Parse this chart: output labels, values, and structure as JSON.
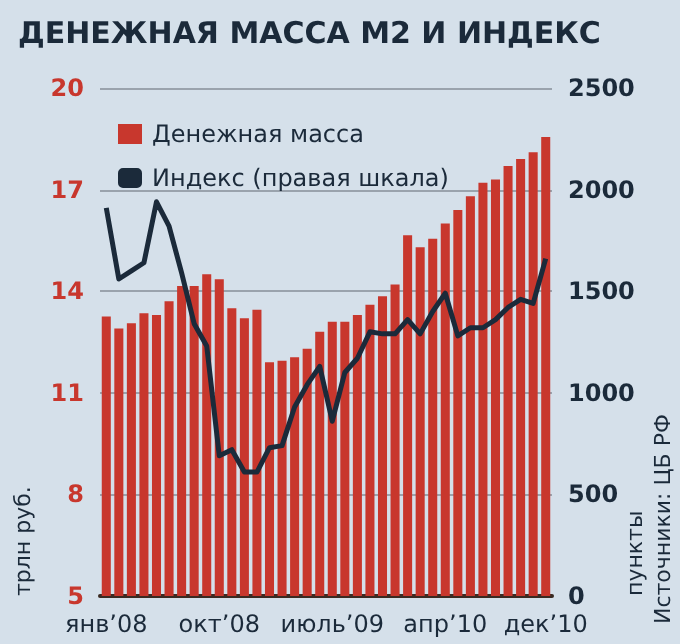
{
  "chart_data": {
    "type": "bar",
    "title": "ДЕНЕЖНАЯ МАССА М2 И ИНДЕКС",
    "categories": [
      "янв’08",
      null,
      null,
      null,
      null,
      null,
      null,
      null,
      null,
      "окт’08",
      null,
      null,
      null,
      null,
      null,
      null,
      null,
      null,
      "июль’09",
      null,
      null,
      null,
      null,
      null,
      null,
      null,
      null,
      "апр’10",
      null,
      null,
      null,
      null,
      null,
      null,
      null,
      "дек’10"
    ],
    "series": [
      {
        "name": "Денежная масса",
        "color": "#c8372d",
        "values": [
          13.25,
          12.9,
          13.05,
          13.35,
          13.3,
          13.7,
          14.15,
          14.15,
          14.5,
          14.35,
          13.5,
          13.2,
          13.45,
          11.9,
          11.95,
          12.05,
          12.3,
          12.8,
          13.1,
          13.1,
          13.3,
          13.6,
          13.85,
          14.2,
          15.65,
          15.3,
          15.55,
          16.0,
          16.4,
          16.8,
          17.2,
          17.3,
          17.7,
          17.9,
          18.1,
          18.55
        ]
      },
      {
        "name": "Индекс (правая шкала)",
        "type": "line",
        "axis": "y2",
        "color": "#1b2a3a",
        "values": [
          1910,
          1560,
          1600,
          1640,
          1940,
          1820,
          1590,
          1340,
          1230,
          690,
          720,
          610,
          610,
          730,
          740,
          930,
          1040,
          1130,
          860,
          1100,
          1170,
          1300,
          1290,
          1290,
          1360,
          1290,
          1400,
          1490,
          1280,
          1320,
          1320,
          1360,
          1420,
          1460,
          1440,
          1660
        ]
      }
    ],
    "ylabel": "трлн руб.",
    "y2label": "пункты",
    "annotations": [
      "Источники: ЦБ РФ"
    ],
    "ylim": [
      5,
      20
    ],
    "yticks": [
      5,
      8,
      11,
      14,
      17,
      20
    ],
    "y2lim": [
      0,
      2500
    ],
    "y2ticks": [
      0,
      500,
      1000,
      1500,
      2000,
      2500
    ],
    "grid": "y",
    "legend": "top left",
    "marker": "none",
    "line_style": "solid"
  }
}
